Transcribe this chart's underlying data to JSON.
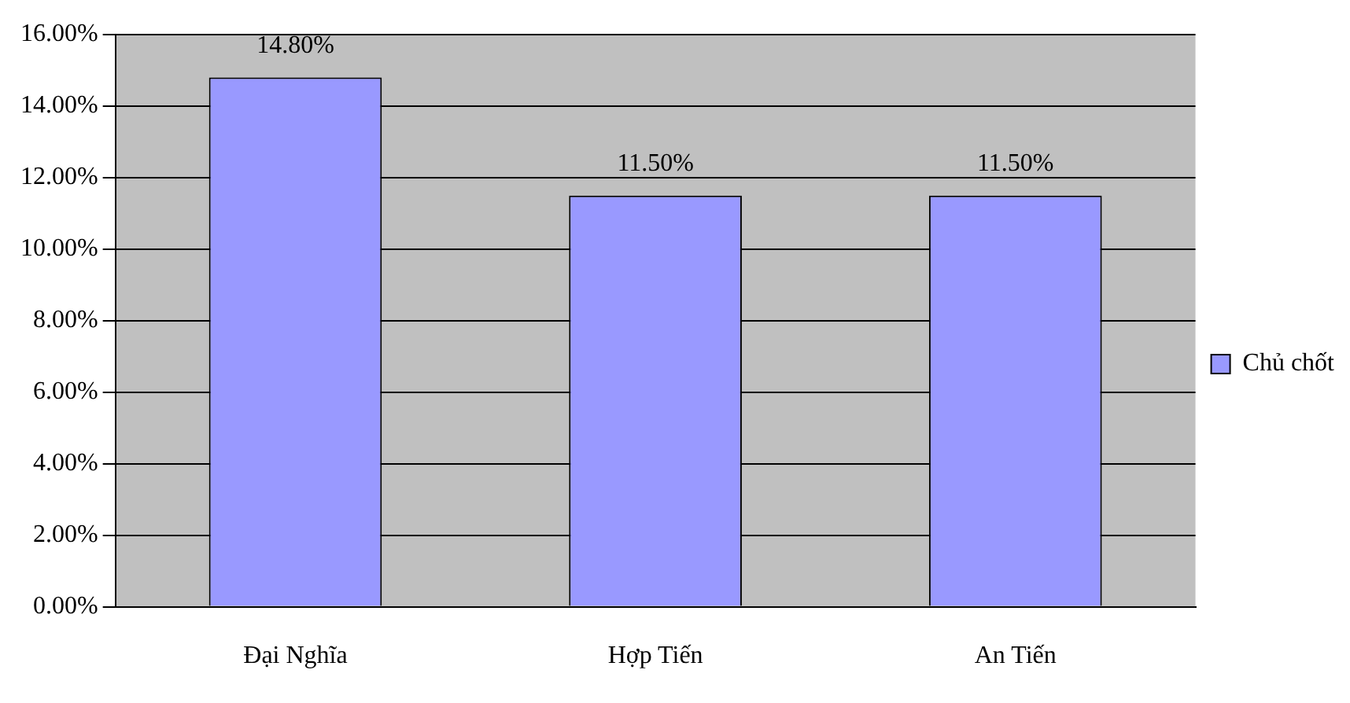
{
  "chart_data": {
    "type": "bar",
    "categories": [
      "Đại Nghĩa",
      "Hợp Tiến",
      "An Tiến"
    ],
    "series": [
      {
        "name": "Chủ chốt",
        "color": "#9999ff",
        "values": [
          14.8,
          11.5,
          11.5
        ],
        "value_labels": [
          "14.80%",
          "11.50%",
          "11.50%"
        ]
      }
    ],
    "ylim": [
      0,
      16
    ],
    "yticks": [
      {
        "value": 0,
        "label": "0.00%"
      },
      {
        "value": 2,
        "label": "2.00%"
      },
      {
        "value": 4,
        "label": "4.00%"
      },
      {
        "value": 6,
        "label": "6.00%"
      },
      {
        "value": 8,
        "label": "8.00%"
      },
      {
        "value": 10,
        "label": "10.00%"
      },
      {
        "value": 12,
        "label": "12.00%"
      },
      {
        "value": 14,
        "label": "14.00%"
      },
      {
        "value": 16,
        "label": "16.00%"
      }
    ],
    "grid": "y",
    "legend": "right"
  }
}
